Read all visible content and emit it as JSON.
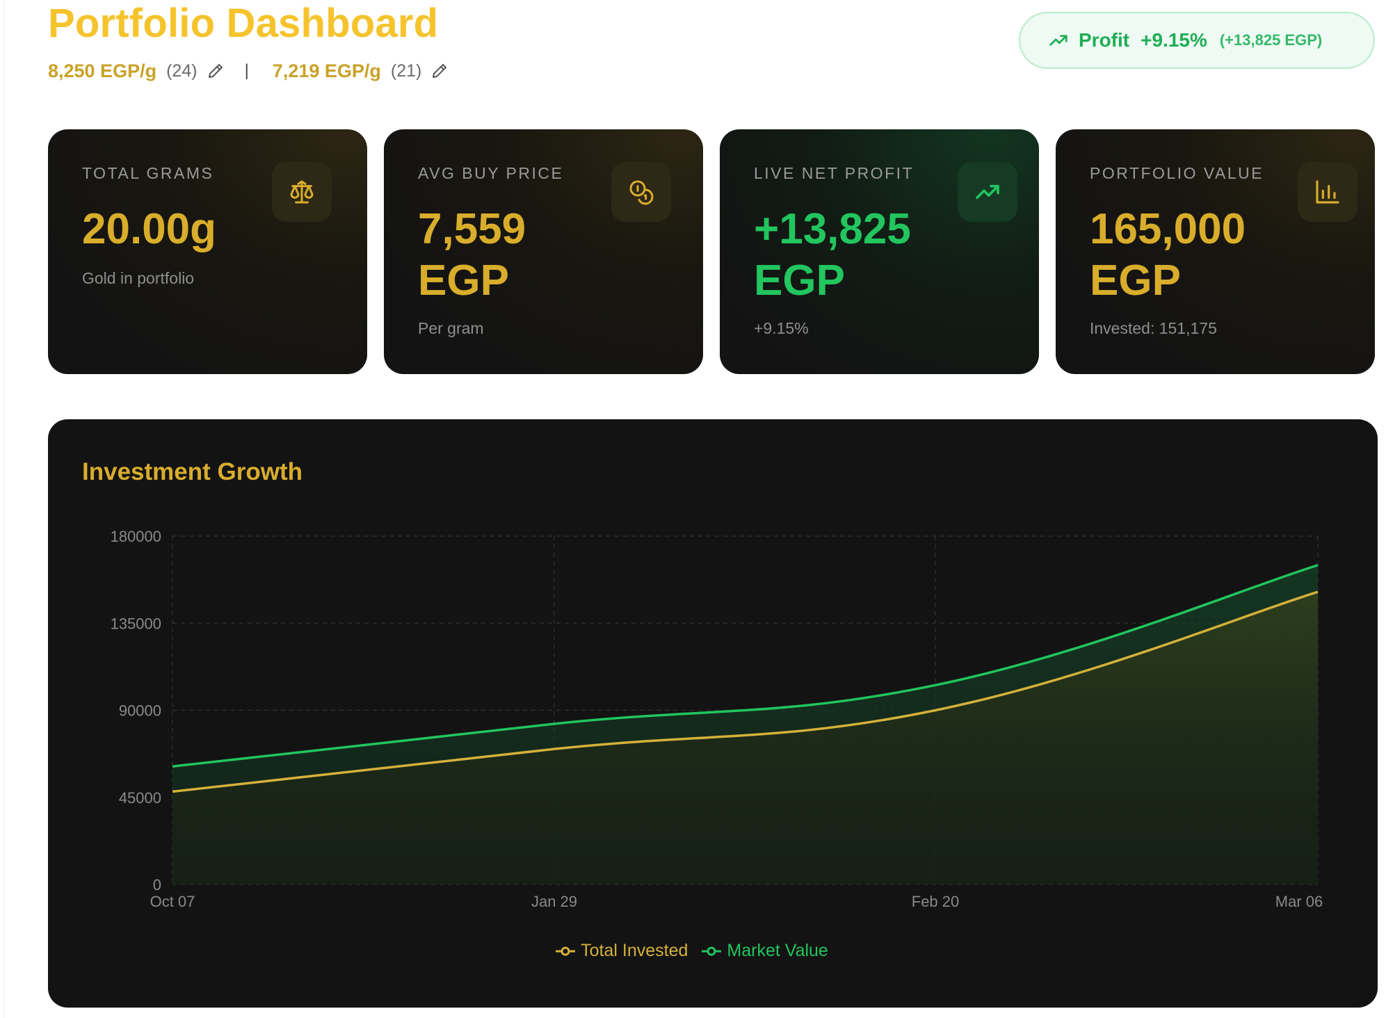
{
  "header": {
    "title": "Portfolio Dashboard",
    "price_a": "8,250 EGP/g",
    "price_a_count": "(24)",
    "separator": "|",
    "price_b": "7,219 EGP/g",
    "price_b_count": "(21)",
    "edit_icon": "pencil-icon"
  },
  "profit_pill": {
    "icon": "trending-up-icon",
    "label": "Profit",
    "percent": "+9.15%",
    "amount": "(+13,825 EGP)"
  },
  "cards": [
    {
      "label": "TOTAL GRAMS",
      "value": "20.00g",
      "unit": "",
      "sub": "Gold in portfolio",
      "icon": "scale-icon"
    },
    {
      "label": "AVG BUY PRICE",
      "value": "7,559",
      "unit": "EGP",
      "sub": "Per gram",
      "icon": "coins-icon"
    },
    {
      "label": "LIVE NET PROFIT",
      "value": "+13,825",
      "unit": "EGP",
      "sub": "+9.15%",
      "icon": "trending-up-icon"
    },
    {
      "label": "PORTFOLIO VALUE",
      "value": "165,000",
      "unit": "EGP",
      "sub": "Invested: 151,175",
      "icon": "bar-chart-icon"
    }
  ],
  "colors": {
    "gold": "#d9ad2c",
    "title_gold": "#f5c32c",
    "green": "#22c55e",
    "card_bg": "#131313"
  },
  "chart_data": {
    "type": "area",
    "title": "Investment Growth",
    "x": [
      "Oct 07",
      "Jan 29",
      "Feb 20",
      "Mar 06"
    ],
    "ylim": [
      0,
      180000
    ],
    "yticks": [
      0,
      45000,
      90000,
      135000,
      180000
    ],
    "grid": true,
    "legend_position": "bottom",
    "series": [
      {
        "name": "Total Invested",
        "color": "#d4b13a",
        "values": [
          48000,
          70000,
          90000,
          151175
        ]
      },
      {
        "name": "Market Value",
        "color": "#22c55e",
        "values": [
          61000,
          83000,
          103000,
          165000
        ]
      }
    ]
  }
}
